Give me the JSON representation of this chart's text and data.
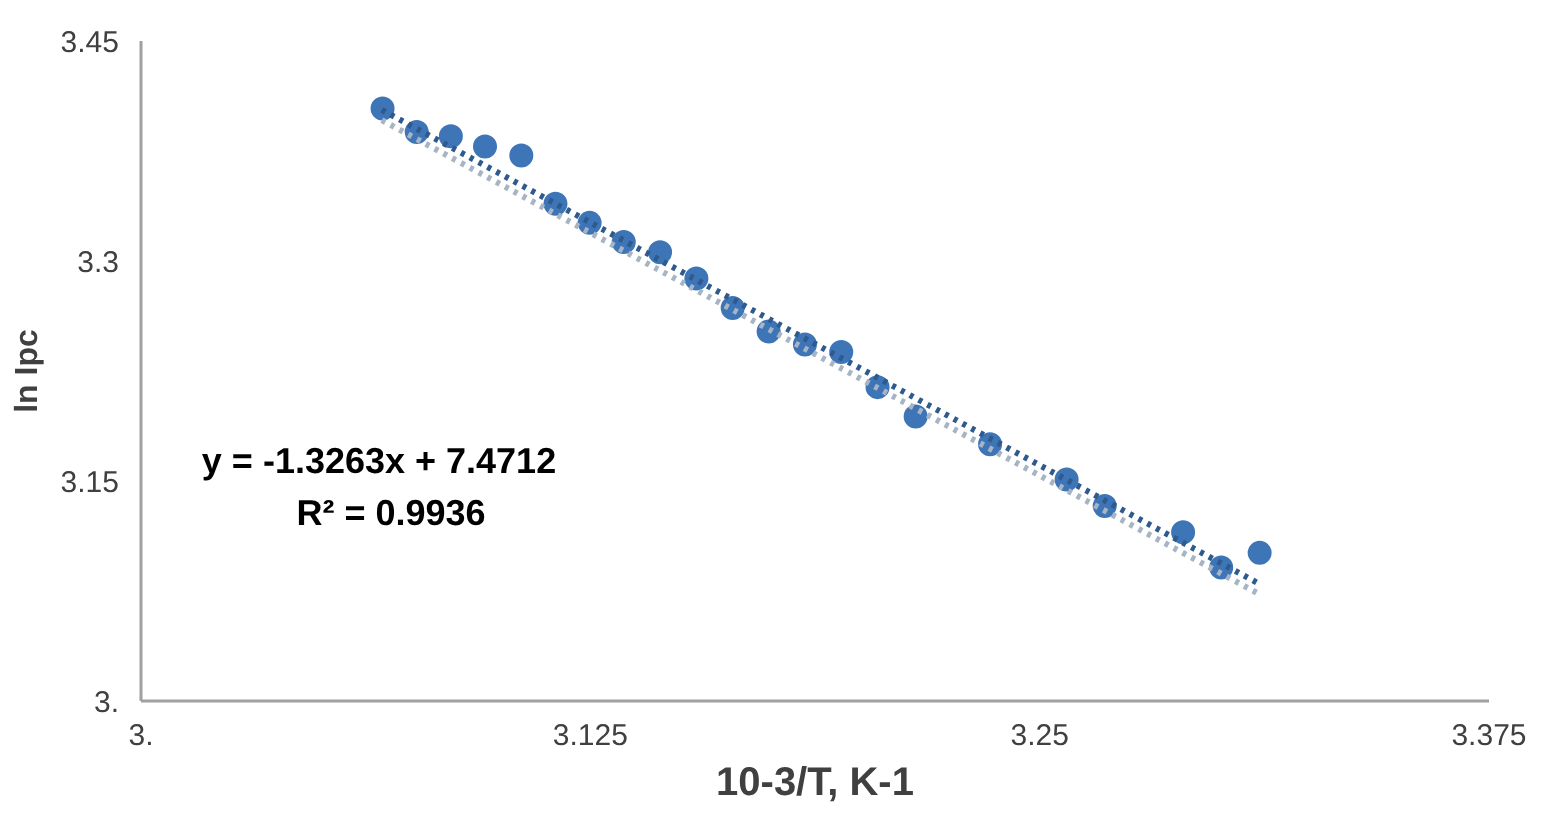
{
  "chart_data": {
    "type": "scatter",
    "xlabel": "10-3/T, K-1",
    "ylabel": "ln Ipc",
    "xlim": [
      3.0,
      3.375
    ],
    "ylim": [
      3.0,
      3.45
    ],
    "xticks": [
      {
        "value": 3.0,
        "label": "3."
      },
      3.125,
      3.25,
      3.375
    ],
    "yticks": [
      {
        "value": 3.0,
        "label": "3."
      },
      3.15,
      3.3,
      3.45
    ],
    "grid": false,
    "series": [
      {
        "marker": "circle",
        "color": "#3e75b7",
        "x": [
          3.0672,
          3.0767,
          3.0862,
          3.0957,
          3.1058,
          3.1153,
          3.1248,
          3.1343,
          3.1444,
          3.1545,
          3.1646,
          3.1746,
          3.1847,
          3.1948,
          3.2049,
          3.2155,
          3.2362,
          3.2575,
          3.2681,
          3.2899,
          3.3005,
          3.3112
        ],
        "values": [
          3.404,
          3.388,
          3.385,
          3.378,
          3.372,
          3.339,
          3.326,
          3.313,
          3.306,
          3.288,
          3.268,
          3.252,
          3.243,
          3.238,
          3.214,
          3.194,
          3.175,
          3.151,
          3.133,
          3.115,
          3.091,
          3.101
        ]
      },
      {
        "type": "line",
        "color": "#a6b4c4",
        "line_style": "dotted",
        "x": [
          3.067,
          3.311
        ],
        "values": [
          3.396,
          3.073
        ]
      },
      {
        "type": "line",
        "color": "#2e5a8e",
        "line_style": "dotted",
        "x": [
          3.067,
          3.311
        ],
        "values": [
          3.403,
          3.08
        ]
      }
    ],
    "annotations": [
      "y = -1.3263x + 7.4712",
      "R² = 0.9936"
    ]
  }
}
